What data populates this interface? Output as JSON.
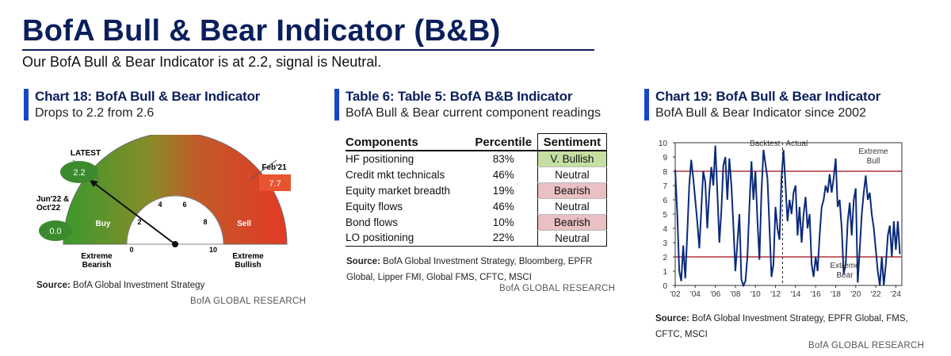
{
  "header": {
    "title": "BofA Bull & Bear Indicator (B&B)",
    "subtitle": "Our BofA Bull & Bear Indicator is at 2.2, signal is Neutral."
  },
  "colors": {
    "navy": "#0a1f5c",
    "accent_bar": "#1747c8",
    "gauge_green": "#3a9a2c",
    "gauge_red": "#e23a26",
    "bubble_green": "#3b8a2d",
    "bubble_red": "#e8542f",
    "bullish_fill": "#c5dfa3",
    "bearish_fill": "#e9c0c3",
    "line_blue": "#0a2a7a",
    "threshold_red": "#b0303a"
  },
  "panel1": {
    "title": "Chart 18: BofA Bull & Bear Indicator",
    "subtitle": "Drops to 2.2 from 2.6",
    "source_label": "Source:",
    "source_text": "BofA Global Investment Strategy",
    "brand": "BofA GLOBAL RESEARCH"
  },
  "panel2": {
    "title": "Table 6: Table 5: BofA B&B Indicator",
    "subtitle": "BofA Bull & Bear current component readings",
    "source_label": "Source:",
    "source_text": "BofA Global Investment Strategy, Bloomberg, EPFR Global, Lipper FMI, Global FMS, CFTC, MSCI",
    "brand": "BofA GLOBAL RESEARCH"
  },
  "panel3": {
    "title": "Chart 19: BofA Bull & Bear Indicator",
    "subtitle": "BofA Bull & Bear Indicator since 2002",
    "source_label": "Source:",
    "source_text": "BofA Global Investment Strategy, EPFR Global, FMS, CFTC, MSCI",
    "brand": "BofA GLOBAL RESEARCH"
  },
  "chart_data": [
    {
      "type": "gauge",
      "value": 2.2,
      "min": 0,
      "max": 10,
      "ticks": [
        "0",
        "2",
        "4",
        "6",
        "8",
        "10"
      ],
      "zones": [
        {
          "label": "Buy",
          "from": 0,
          "to": 2
        },
        {
          "label": "Sell",
          "from": 8,
          "to": 10
        }
      ],
      "end_labels": {
        "low": "Extreme Bearish",
        "high": "Extreme Bullish"
      },
      "markers": [
        {
          "label": "LATEST",
          "value": "2.2"
        },
        {
          "label": "Jun'22 & Oct'22",
          "value": "0.0"
        },
        {
          "label": "Feb'21",
          "value": "7.7"
        }
      ]
    },
    {
      "type": "table",
      "columns": [
        "Components",
        "Percentile",
        "Sentiment"
      ],
      "rows": [
        {
          "component": "HF positioning",
          "percentile": "83%",
          "sentiment": "V. Bullish",
          "fill": "#c5dfa3"
        },
        {
          "component": "Credit mkt technicals",
          "percentile": "46%",
          "sentiment": "Neutral",
          "fill": "#ffffff"
        },
        {
          "component": "Equity market breadth",
          "percentile": "19%",
          "sentiment": "Bearish",
          "fill": "#e9c0c3"
        },
        {
          "component": "Equity flows",
          "percentile": "46%",
          "sentiment": "Neutral",
          "fill": "#ffffff"
        },
        {
          "component": "Bond flows",
          "percentile": "10%",
          "sentiment": "Bearish",
          "fill": "#e9c0c3"
        },
        {
          "component": "LO positioning",
          "percentile": "22%",
          "sentiment": "Neutral",
          "fill": "#ffffff"
        }
      ]
    },
    {
      "type": "line",
      "x_ticks": [
        "'02",
        "'04",
        "'06",
        "'08",
        "'10",
        "'12",
        "'14",
        "'16",
        "'18",
        "'20",
        "'22",
        "'24"
      ],
      "xlim": [
        2002,
        2024.6
      ],
      "ylim": [
        0,
        10
      ],
      "y_ticks": [
        "0",
        "1",
        "2",
        "3",
        "4",
        "5",
        "6",
        "7",
        "8",
        "9",
        "10"
      ],
      "thresholds": [
        8,
        2
      ],
      "divider_x": 2012.7,
      "annotations": [
        "Backtest",
        "Actual",
        "Extreme Bull",
        "Extreme Bear"
      ],
      "x": [
        2002.0,
        2002.2,
        2002.4,
        2002.6,
        2002.8,
        2003.0,
        2003.2,
        2003.4,
        2003.6,
        2003.8,
        2004.0,
        2004.2,
        2004.4,
        2004.6,
        2004.8,
        2005.0,
        2005.2,
        2005.4,
        2005.6,
        2005.8,
        2006.0,
        2006.2,
        2006.4,
        2006.6,
        2006.8,
        2007.0,
        2007.2,
        2007.4,
        2007.6,
        2007.8,
        2008.0,
        2008.2,
        2008.4,
        2008.6,
        2008.8,
        2009.0,
        2009.2,
        2009.4,
        2009.6,
        2009.8,
        2010.0,
        2010.2,
        2010.4,
        2010.6,
        2010.8,
        2011.0,
        2011.2,
        2011.4,
        2011.6,
        2011.8,
        2012.0,
        2012.2,
        2012.4,
        2012.6,
        2012.8,
        2013.0,
        2013.2,
        2013.4,
        2013.6,
        2013.8,
        2014.0,
        2014.2,
        2014.4,
        2014.6,
        2014.8,
        2015.0,
        2015.2,
        2015.4,
        2015.6,
        2015.8,
        2016.0,
        2016.2,
        2016.4,
        2016.6,
        2016.8,
        2017.0,
        2017.2,
        2017.4,
        2017.6,
        2017.8,
        2018.0,
        2018.2,
        2018.4,
        2018.6,
        2018.8,
        2019.0,
        2019.2,
        2019.4,
        2019.6,
        2019.8,
        2020.0,
        2020.2,
        2020.4,
        2020.6,
        2020.8,
        2021.0,
        2021.2,
        2021.4,
        2021.6,
        2021.8,
        2022.0,
        2022.2,
        2022.4,
        2022.6,
        2022.8,
        2023.0,
        2023.2,
        2023.4,
        2023.6,
        2023.8,
        2024.0,
        2024.2,
        2024.4
      ],
      "y": [
        8.1,
        5.2,
        1.0,
        0.3,
        2.8,
        0.5,
        3.6,
        7.0,
        8.8,
        7.5,
        6.0,
        4.5,
        2.6,
        5.3,
        8.0,
        7.2,
        4.0,
        6.5,
        8.3,
        7.0,
        9.8,
        6.5,
        3.0,
        5.2,
        8.4,
        9.0,
        6.0,
        8.9,
        7.0,
        4.2,
        1.0,
        3.0,
        5.0,
        0.4,
        0.0,
        0.3,
        2.0,
        5.5,
        8.7,
        6.0,
        8.0,
        4.5,
        1.8,
        6.5,
        9.5,
        8.5,
        7.5,
        4.0,
        0.6,
        1.5,
        5.5,
        4.0,
        3.2,
        7.5,
        9.5,
        7.0,
        4.5,
        6.0,
        5.0,
        6.5,
        7.0,
        3.5,
        5.5,
        3.0,
        5.0,
        6.2,
        4.0,
        5.0,
        1.5,
        0.6,
        2.0,
        1.0,
        3.5,
        5.5,
        6.0,
        7.0,
        6.5,
        7.8,
        6.5,
        7.5,
        8.9,
        5.5,
        6.0,
        4.0,
        0.8,
        1.5,
        4.5,
        5.8,
        3.5,
        6.0,
        6.8,
        0.2,
        2.5,
        5.0,
        6.5,
        7.7,
        6.0,
        6.5,
        5.0,
        4.0,
        2.5,
        1.0,
        0.0,
        2.0,
        0.0,
        1.5,
        3.5,
        4.2,
        2.0,
        4.5,
        2.5,
        4.5,
        2.2
      ]
    }
  ]
}
